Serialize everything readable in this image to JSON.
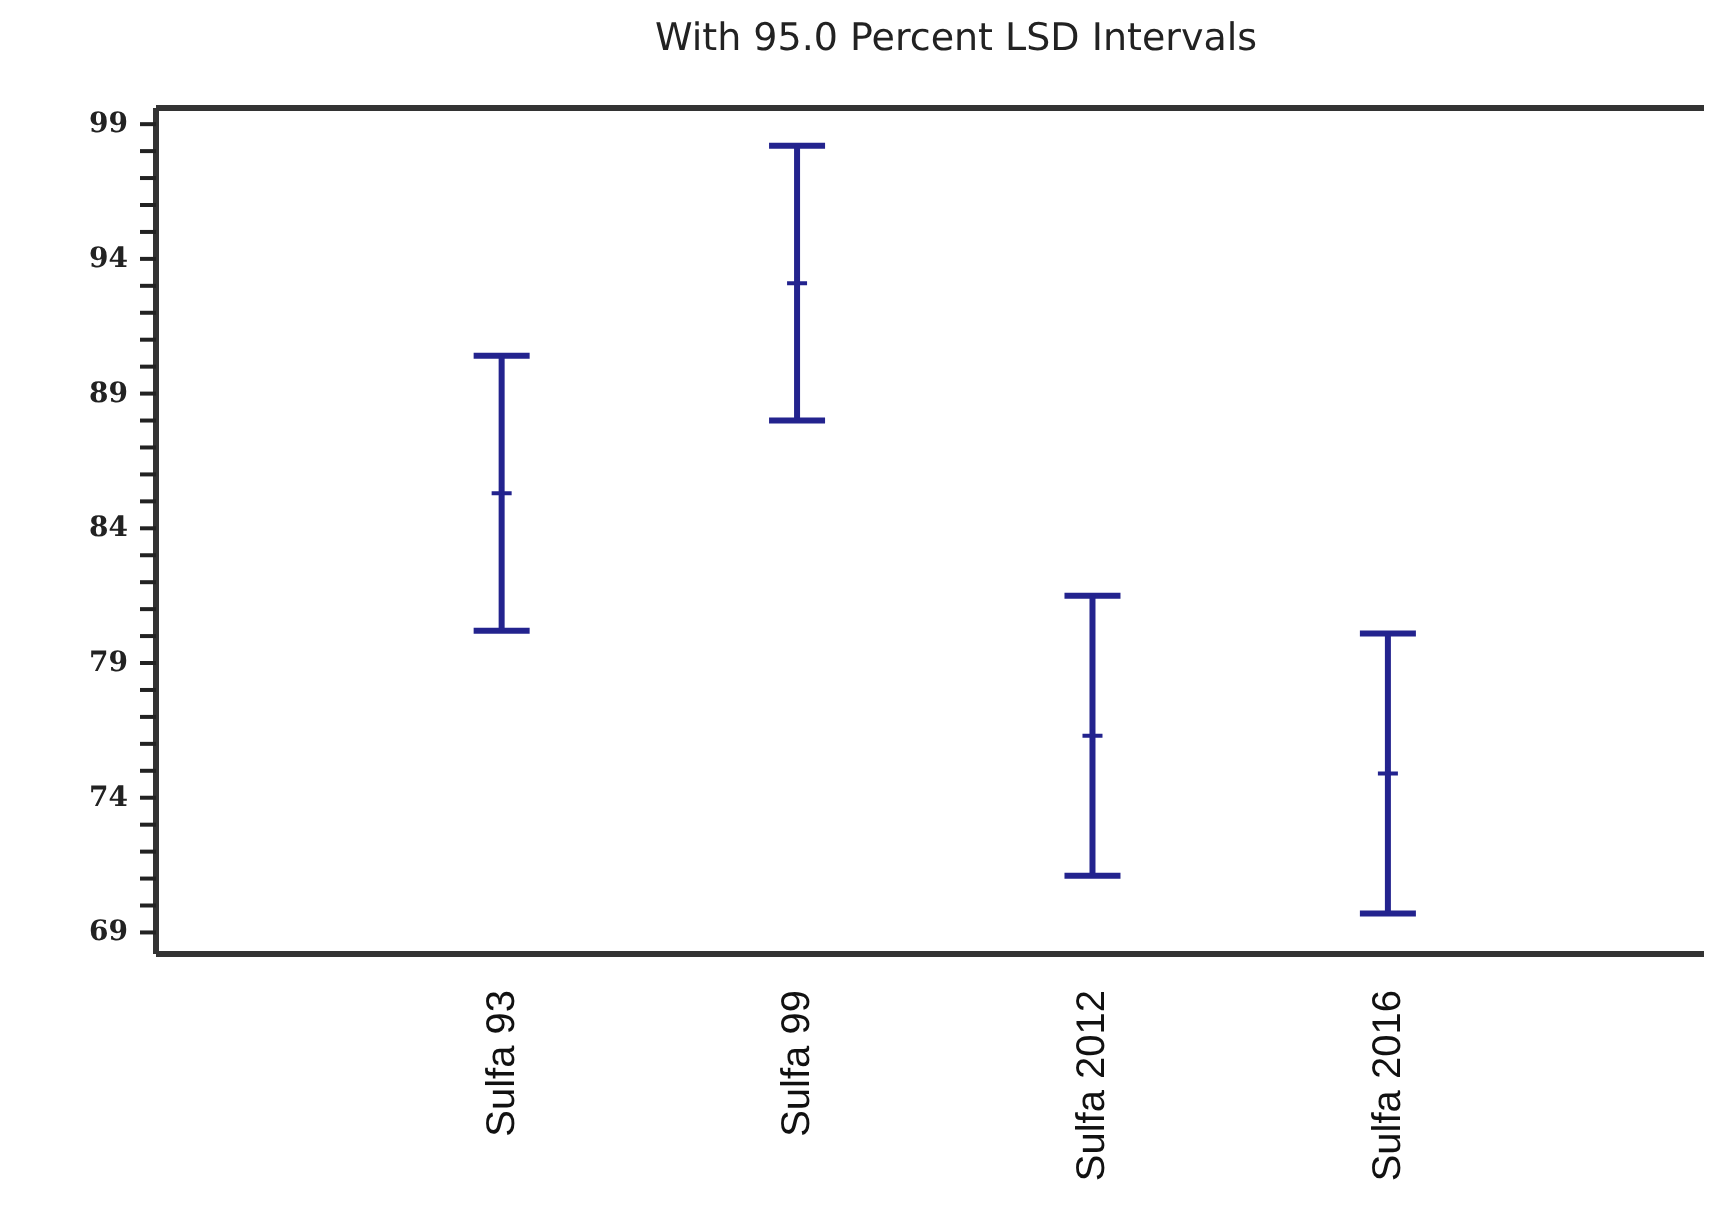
{
  "chart_data": {
    "type": "scatter",
    "title": "With 95.0 Percent LSD Intervals",
    "categories": [
      "Sulfa 93",
      "Sulfa 99",
      "Sulfa 2012",
      "Sulfa 2016"
    ],
    "series": [
      {
        "color": "#23238e",
        "values": [
          85.3,
          93.1,
          76.3,
          74.9
        ],
        "errors": [
          5.1,
          5.1,
          5.2,
          5.2
        ]
      }
    ],
    "marker": "cross",
    "ylim": [
      68.2,
      99.6
    ],
    "yticks": [
      69,
      {
        "value": 70,
        "label": null
      },
      {
        "value": 71,
        "label": null
      },
      {
        "value": 72,
        "label": null
      },
      {
        "value": 73,
        "label": null
      },
      74,
      {
        "value": 75,
        "label": null
      },
      {
        "value": 76,
        "label": null
      },
      {
        "value": 77,
        "label": null
      },
      {
        "value": 78,
        "label": null
      },
      79,
      {
        "value": 80,
        "label": null
      },
      {
        "value": 81,
        "label": null
      },
      {
        "value": 82,
        "label": null
      },
      {
        "value": 83,
        "label": null
      },
      84,
      {
        "value": 85,
        "label": null
      },
      {
        "value": 86,
        "label": null
      },
      {
        "value": 87,
        "label": null
      },
      {
        "value": 88,
        "label": null
      },
      89,
      {
        "value": 90,
        "label": null
      },
      {
        "value": 91,
        "label": null
      },
      {
        "value": 92,
        "label": null
      },
      {
        "value": 93,
        "label": null
      },
      94,
      {
        "value": 95,
        "label": null
      },
      {
        "value": 96,
        "label": null
      },
      {
        "value": 97,
        "label": null
      },
      {
        "value": 98,
        "label": null
      },
      99
    ]
  }
}
